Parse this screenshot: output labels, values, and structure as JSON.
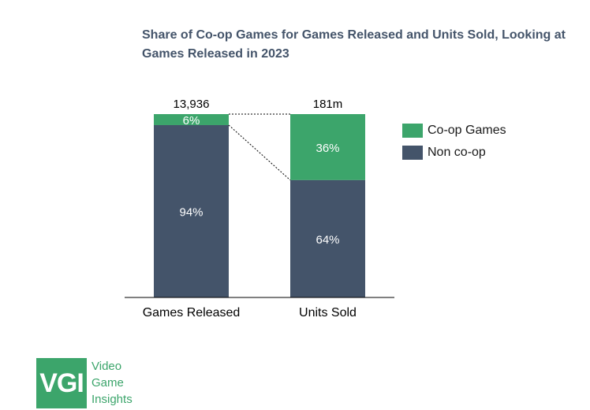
{
  "chart_data": {
    "type": "bar",
    "stacked": true,
    "normalized": true,
    "title": "Share of Co-op Games for Games Released and Units Sold, Looking at Games Released in 2023",
    "categories": [
      "Games Released",
      "Units Sold"
    ],
    "totals": [
      "13,936",
      "181m"
    ],
    "series": [
      {
        "name": "Co-op Games",
        "values": [
          6,
          36
        ],
        "labels": [
          "6%",
          "36%"
        ],
        "color": "#3ca56b"
      },
      {
        "name": "Non co-op",
        "values": [
          94,
          64
        ],
        "labels": [
          "94%",
          "64%"
        ],
        "color": "#44546a"
      }
    ],
    "ylim": [
      0,
      100
    ],
    "legend_position": "right"
  },
  "logo": {
    "mark": "VGI",
    "lines": [
      "Video",
      "Game",
      "Insights"
    ],
    "color": "#3ca56b"
  }
}
